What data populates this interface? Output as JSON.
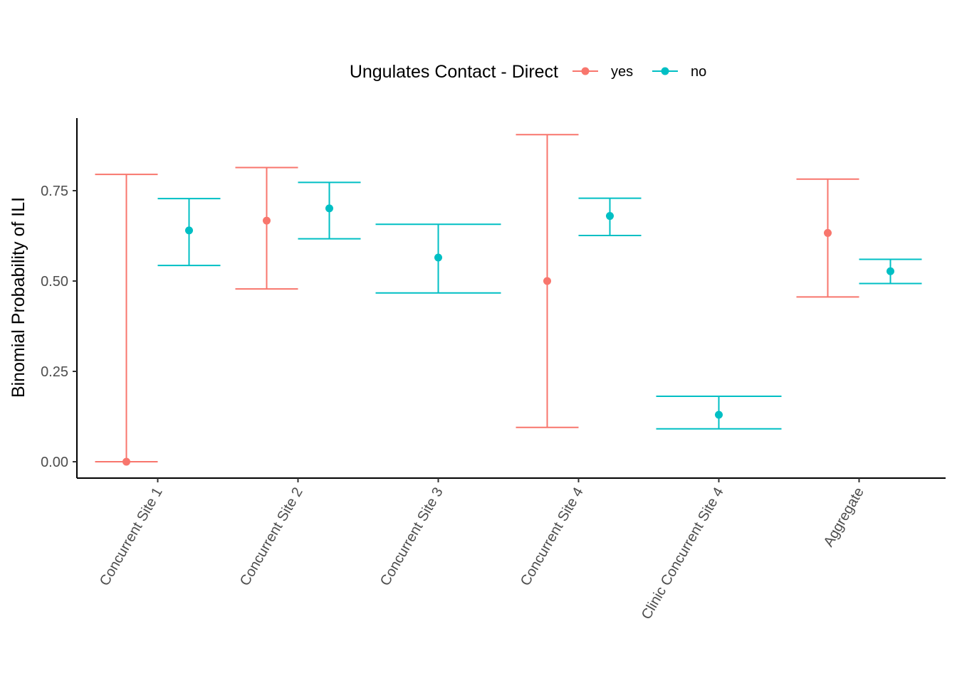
{
  "chart_data": {
    "type": "scatter",
    "title": "",
    "xlabel": "",
    "ylabel": "Binomial Probability of ILI",
    "ylim": [
      -0.04,
      0.96
    ],
    "yticks": [
      0.0,
      0.25,
      0.5,
      0.75
    ],
    "ytick_labels": [
      "0.00",
      "0.25",
      "0.50",
      "0.75"
    ],
    "categories": [
      "Concurrent Site 1",
      "Concurrent Site 2",
      "Concurrent Site 3",
      "Concurrent Site 4",
      "Clinic Concurrent Site 4",
      "Aggregate"
    ],
    "legend": {
      "title": "Ungulates Contact - Direct",
      "position": "top"
    },
    "grid": false,
    "series": [
      {
        "name": "yes",
        "color": "#F8766D",
        "points": [
          {
            "category": "Concurrent Site 1",
            "y": 0.0,
            "lower": 0.0,
            "upper": 0.795
          },
          {
            "category": "Concurrent Site 2",
            "y": 0.667,
            "lower": 0.478,
            "upper": 0.814
          },
          {
            "category": "Concurrent Site 4",
            "y": 0.5,
            "lower": 0.095,
            "upper": 0.905
          },
          {
            "category": "Aggregate",
            "y": 0.633,
            "lower": 0.456,
            "upper": 0.782
          }
        ]
      },
      {
        "name": "no",
        "color": "#00BFC4",
        "points": [
          {
            "category": "Concurrent Site 1",
            "y": 0.64,
            "lower": 0.543,
            "upper": 0.728
          },
          {
            "category": "Concurrent Site 2",
            "y": 0.701,
            "lower": 0.617,
            "upper": 0.773
          },
          {
            "category": "Concurrent Site 3",
            "y": 0.565,
            "lower": 0.467,
            "upper": 0.657
          },
          {
            "category": "Concurrent Site 4",
            "y": 0.68,
            "lower": 0.626,
            "upper": 0.729
          },
          {
            "category": "Clinic Concurrent Site 4",
            "y": 0.13,
            "lower": 0.091,
            "upper": 0.181
          },
          {
            "category": "Aggregate",
            "y": 0.527,
            "lower": 0.493,
            "upper": 0.56
          }
        ]
      }
    ]
  }
}
